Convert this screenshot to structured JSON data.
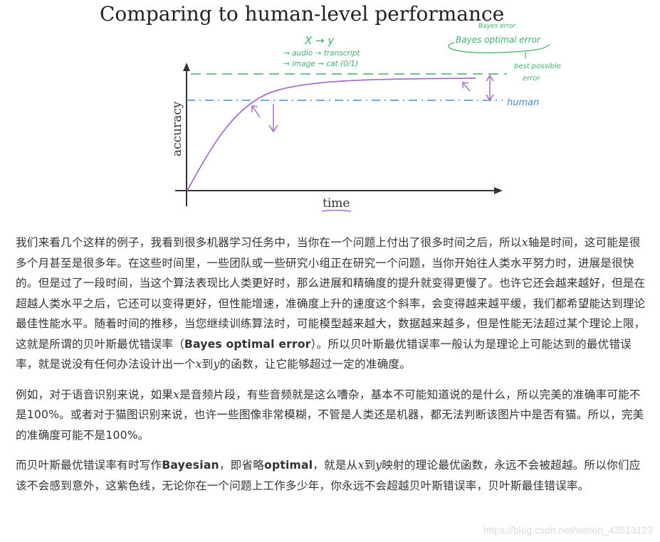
{
  "figure": {
    "title": "Comparing to human-level performance",
    "y_axis_label": "accuracy",
    "x_axis_label": "time",
    "annotations": {
      "x_to_y": "X → y",
      "audio": "→ audio → transcript",
      "image": "→ image → cat (0/1)",
      "bayes_small": "Bayes error",
      "bayes_optimal": "Bayes optimal error",
      "best_possible": "best possible",
      "error": "error",
      "human": "human"
    },
    "colors": {
      "curve": "#a66fcf",
      "bayes_line": "#3fb16a",
      "human_line": "#3f8fd8",
      "axis": "#333333"
    }
  },
  "article": {
    "p1": {
      "s1": "我们来看几个这样的例子，我看到很多机器学习任务中，当你在一个问题上付出了很多时间之后，所以",
      "var_x": "x",
      "s2": "轴是时间，这可能是很多个月甚至是很多年。在这些时间里，一些团队或一些研究小组正在研究一个问题，当你开始往人类水平努力时，进展是很快的。但是过了一段时间，当这个算法表现比人类更好时，那么进展和精确度的提升就变得更慢了。也许它还会越来越好，但是在超越人类水平之后，它还可以变得更好，但性能增速，准确度上升的速度这个斜率，会变得越来越平缓，我们都希望能达到理论最佳性能水平。随着时间的推移，当您继续训练算法时，可能模型越来越大，数据越来越多，但是性能无法超过某个理论上限，这就是所谓的贝叶斯最优错误率（",
      "bold": "Bayes optimal error",
      "s3": "）。所以贝叶斯最优错误率一般认为是理论上可能达到的最优错误率，就是说没有任何办法设计出一个",
      "var_x2": "x",
      "s4": "到",
      "var_y": "y",
      "s5": "的函数，让它能够超过一定的准确度。"
    },
    "p2": {
      "s1": "例如，对于语音识别来说，如果",
      "var_x": "x",
      "s2": "是音频片段，有些音频就是这么嘈杂，基本不可能知道说的是什么，所以完美的准确率可能不是100%。或者对于猫图识别来说，也许一些图像非常模糊，不管是人类还是机器，都无法判断该图片中是否有猫。所以，完美的准确度可能不是100%。"
    },
    "p3": {
      "s1": "而贝叶斯最优错误率有时写作",
      "bold1": "Bayesian",
      "s2": "，即省略",
      "bold2": "optimal",
      "s3": "，就是从",
      "var_x": "x",
      "s4": "到",
      "var_y": "y",
      "s5": "映射的理论最优函数，永远不会被超越。所以你们应该不会感到意外，这紫色线，无论你在一个问题上工作多少年，你永远不会超越贝叶斯错误率，贝叶斯最佳错误率。"
    }
  },
  "watermark": "https://blog.csdn.net/weixin_43513123"
}
